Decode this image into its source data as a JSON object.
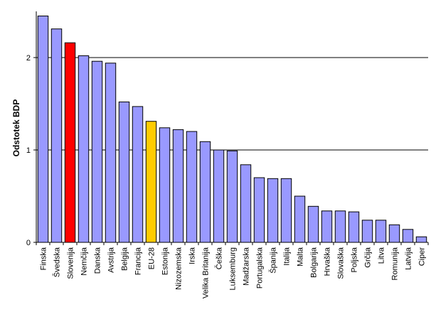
{
  "chart_data": {
    "type": "bar",
    "ylabel": "Odstotek BDP",
    "ylim": [
      0,
      2.5
    ],
    "yticks": [
      0,
      1,
      2
    ],
    "grid": true,
    "legend": "none",
    "categories": [
      "Finska",
      "Švedska",
      "Slovenija",
      "Nemčija",
      "Danska",
      "Avstrija",
      "Belgija",
      "Francija",
      "EU-28",
      "Estonija",
      "Nizozemska",
      "Irska",
      "Velika Britanija",
      "Češka",
      "Luksemburg",
      "Madžarska",
      "Portugalska",
      "Španija",
      "Italija",
      "Malta",
      "Bolgarija",
      "Hrvaška",
      "Slovaška",
      "Poljska",
      "Grčija",
      "Litva",
      "Romunija",
      "Latvija",
      "Ciper"
    ],
    "values": [
      2.45,
      2.31,
      2.16,
      2.02,
      1.96,
      1.94,
      1.52,
      1.47,
      1.31,
      1.24,
      1.22,
      1.2,
      1.09,
      1.0,
      0.99,
      0.84,
      0.7,
      0.69,
      0.69,
      0.5,
      0.39,
      0.34,
      0.34,
      0.33,
      0.24,
      0.24,
      0.19,
      0.14,
      0.06
    ],
    "colors": {
      "default": "#9999ff",
      "highlight_slovenija": "#ff0000",
      "highlight_eu28": "#ffcc00",
      "border": "#000000"
    }
  }
}
